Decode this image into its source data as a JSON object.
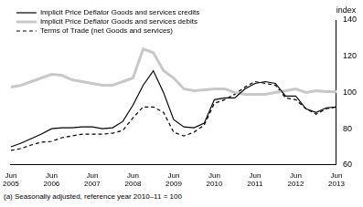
{
  "chart_data": {
    "type": "line",
    "y_label": "index",
    "footnote": "(a) Seasonally adjusted, reference year 2010–11 = 100",
    "categories": [
      "Jun 2005",
      null,
      null,
      null,
      "Jun 2006",
      null,
      null,
      null,
      "Jun 2007",
      null,
      null,
      null,
      "Jun 2008",
      null,
      null,
      null,
      "Jun 2009",
      null,
      null,
      null,
      "Jun 2010",
      null,
      null,
      null,
      "Jun 2011",
      null,
      null,
      null,
      "Jun 2012",
      null,
      null,
      null,
      "Jun 2013"
    ],
    "series": [
      {
        "name": "Implicit Price Deflator Goods and services credits",
        "color": "#000000",
        "line_style": "solid",
        "values": [
          70,
          72,
          74.5,
          77,
          80,
          80.5,
          80.5,
          81,
          81,
          80,
          80.5,
          84,
          93,
          104,
          112,
          100,
          85,
          81,
          80.5,
          83,
          96,
          97,
          97,
          102,
          105,
          106,
          105,
          98,
          98,
          91,
          89,
          91.5,
          92
        ]
      },
      {
        "name": "Implicit Price Deflator Goods and services debits",
        "color": "#c8c8c8",
        "line_style": "solid",
        "values": [
          103,
          104,
          106,
          108,
          110,
          109.5,
          107,
          106,
          105,
          104,
          104,
          106,
          108,
          124,
          122,
          112,
          108,
          102,
          101,
          101.5,
          102,
          102,
          100,
          99,
          99,
          99,
          100,
          101,
          102,
          100,
          101,
          100.5,
          100.5
        ]
      },
      {
        "name": "Terms of Trade (net Goods and services)",
        "color": "#000000",
        "line_style": "dashed",
        "values": [
          68,
          69,
          71,
          72.5,
          73,
          75,
          76,
          77,
          77,
          77,
          77.5,
          79,
          86,
          92,
          92,
          89,
          78,
          76,
          78,
          82,
          94,
          96,
          99,
          103,
          106,
          105,
          104,
          97,
          96,
          91,
          88,
          91,
          92
        ]
      }
    ],
    "ylim": [
      60,
      140
    ],
    "yticks": [
      60,
      80,
      100,
      120,
      140
    ],
    "grid": false,
    "legend": "top-left"
  }
}
